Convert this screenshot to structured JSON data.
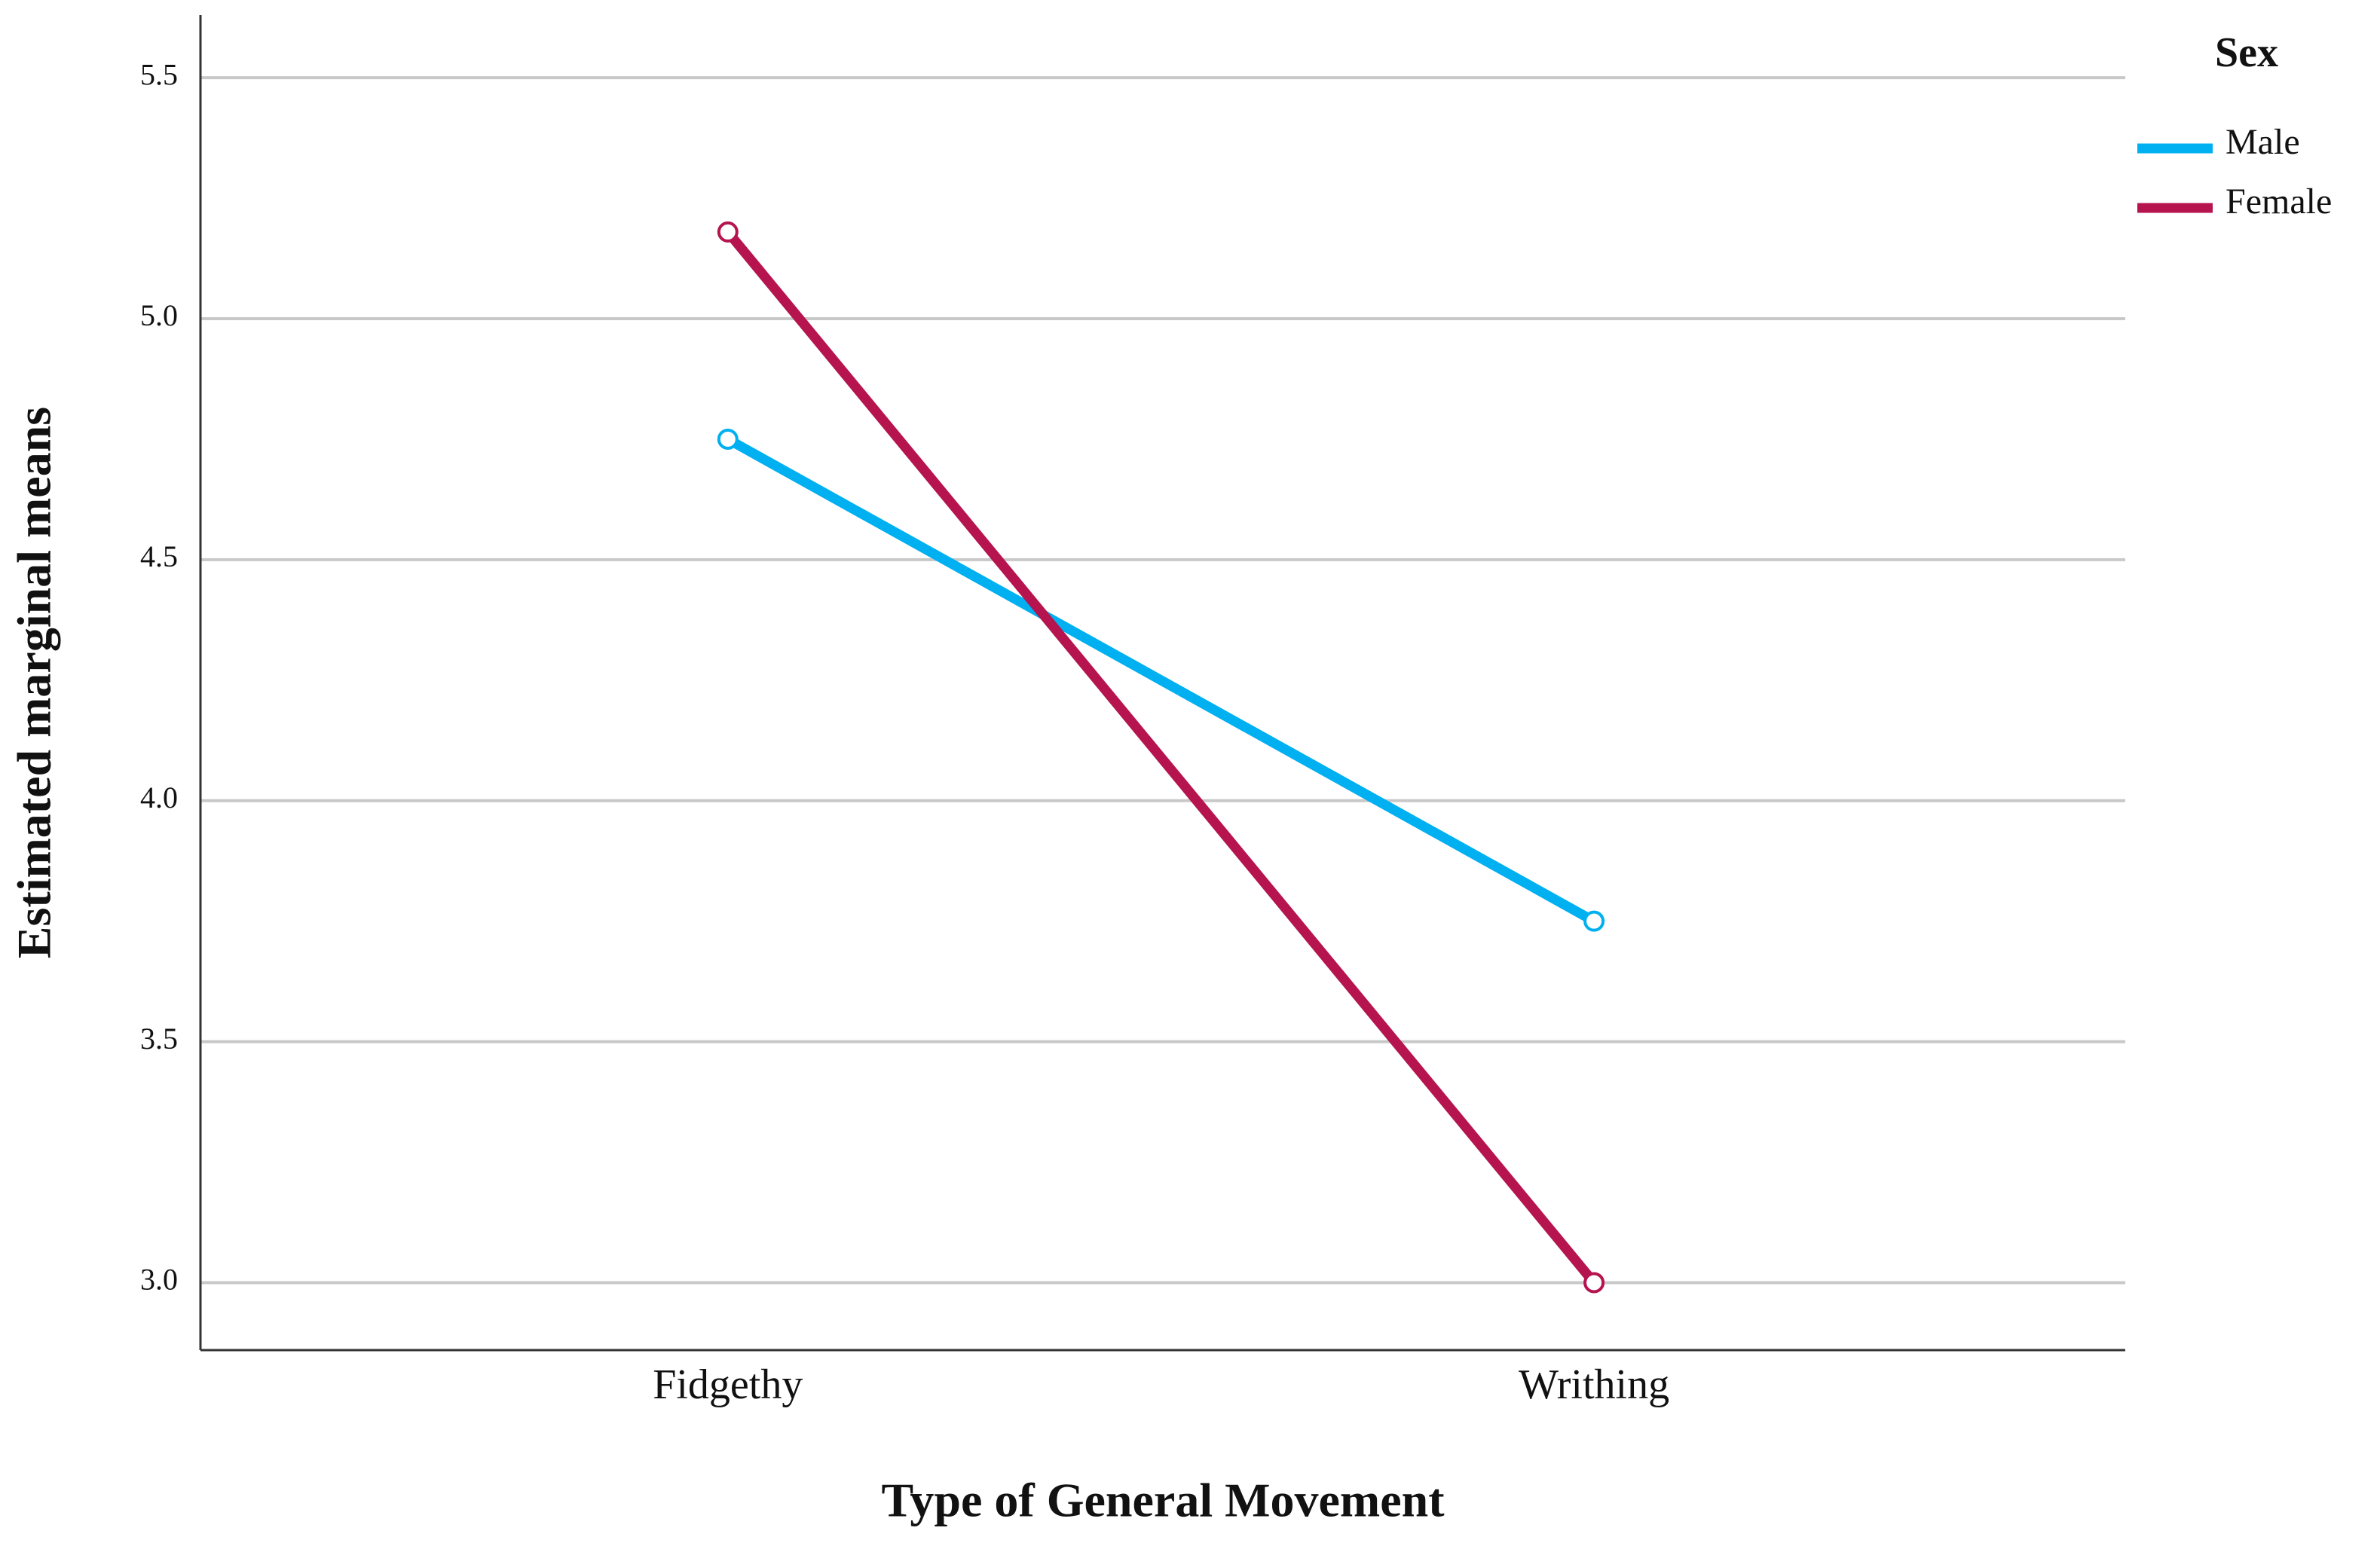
{
  "chart_data": {
    "type": "line",
    "x_label": "Type of General Movement",
    "y_label": "Estimated marginal means",
    "legend_title": "Sex",
    "legend_position": "right",
    "categories": [
      "Fidgethy",
      "Writhing"
    ],
    "series": [
      {
        "name": "Male",
        "color": "#00b0f0",
        "values": [
          4.75,
          3.75
        ]
      },
      {
        "name": "Female",
        "color": "#b5144f",
        "values": [
          5.18,
          3.0
        ]
      }
    ],
    "ylim": [
      2.86,
      5.63
    ],
    "yticks": [
      {
        "value": 3,
        "label": "3.0"
      },
      3.5,
      {
        "value": 4,
        "label": "4.0"
      },
      4.5,
      {
        "value": 5,
        "label": "5.0"
      },
      5.5
    ],
    "grid": true
  }
}
